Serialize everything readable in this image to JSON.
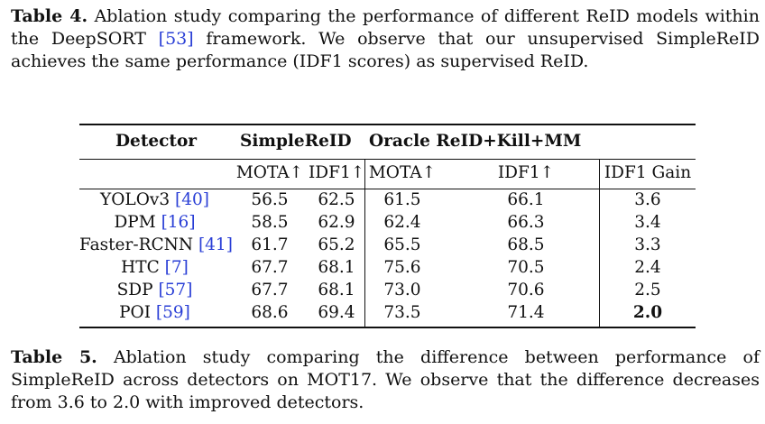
{
  "caption_top": {
    "label": "Table 4.",
    "text_before_cite": " Ablation study comparing the performance of different ReID models within the DeepSORT ",
    "cite": "[53]",
    "text_after_cite": " framework. We observe that our unsupervised SimpleReID achieves the same performance (IDF1 scores) as supervised ReID."
  },
  "table": {
    "header_group": {
      "detector": "Detector",
      "simplereid": "SimpleReID",
      "oracle": "Oracle ReID+Kill+MM"
    },
    "subheaders": [
      "MOTA↑",
      "IDF1↑",
      "MOTA↑",
      "IDF1↑",
      "IDF1 Gain"
    ],
    "rows": [
      {
        "detector": "YOLOv3",
        "cite": "[40]",
        "s_mota": "56.5",
        "s_idf1": "62.5",
        "o_mota": "61.5",
        "o_idf1": "66.1",
        "gain": "3.6"
      },
      {
        "detector": "DPM",
        "cite": "[16]",
        "s_mota": "58.5",
        "s_idf1": "62.9",
        "o_mota": "62.4",
        "o_idf1": "66.3",
        "gain": "3.4"
      },
      {
        "detector": "Faster-RCNN",
        "cite": "[41]",
        "s_mota": "61.7",
        "s_idf1": "65.2",
        "o_mota": "65.5",
        "o_idf1": "68.5",
        "gain": "3.3"
      },
      {
        "detector": "HTC",
        "cite": "[7]",
        "s_mota": "67.7",
        "s_idf1": "68.1",
        "o_mota": "75.6",
        "o_idf1": "70.5",
        "gain": "2.4"
      },
      {
        "detector": "SDP",
        "cite": "[57]",
        "s_mota": "67.7",
        "s_idf1": "68.1",
        "o_mota": "73.0",
        "o_idf1": "70.6",
        "gain": "2.5"
      },
      {
        "detector": "POI",
        "cite": "[59]",
        "s_mota": "68.6",
        "s_idf1": "69.4",
        "o_mota": "73.5",
        "o_idf1": "71.4",
        "gain": "2.0"
      }
    ]
  },
  "caption_bottom": {
    "label": "Table 5.",
    "text": " Ablation study comparing the difference between performance of SimpleReID across detectors on MOT17. We observe that the difference decreases from 3.6 to 2.0 with improved detectors."
  },
  "colors": {
    "citation": "#2a3fd6",
    "text": "#111111"
  }
}
